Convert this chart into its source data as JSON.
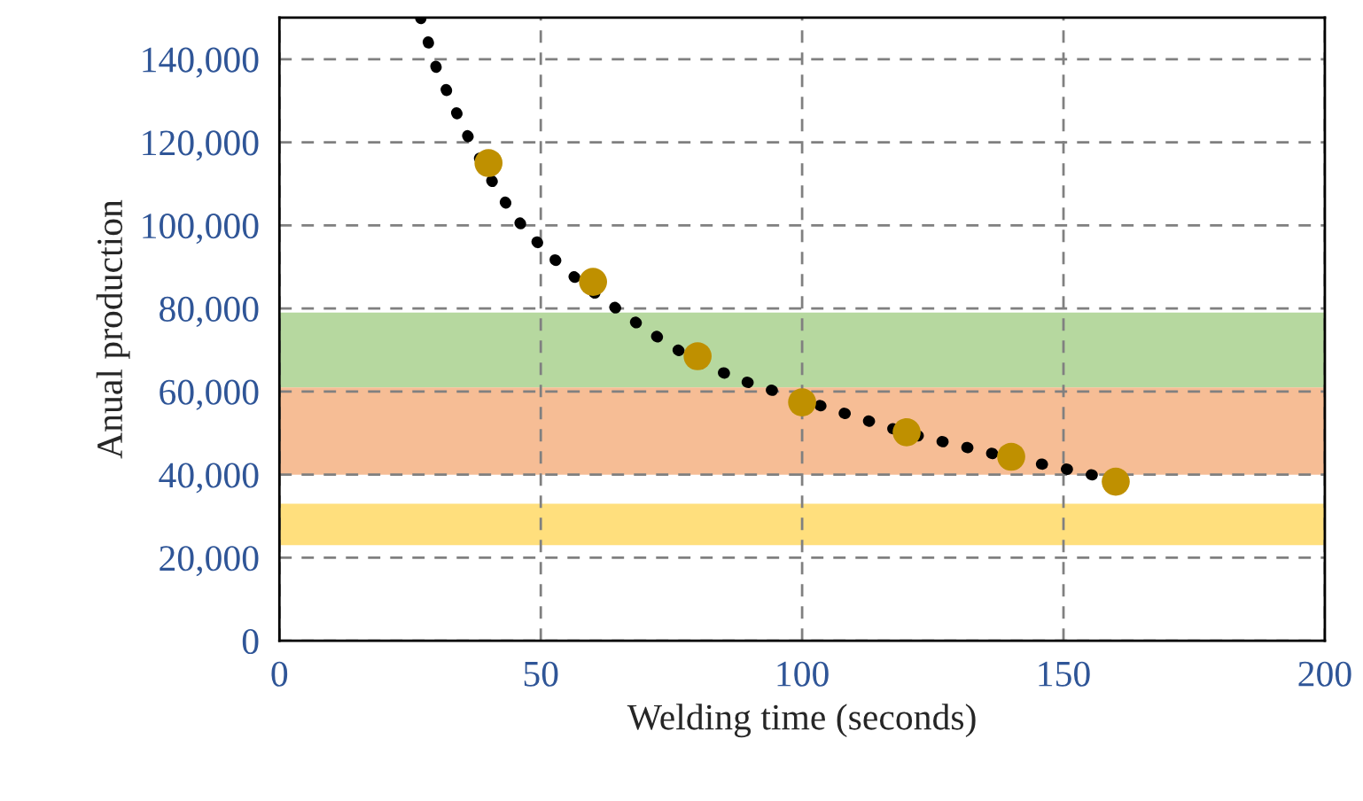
{
  "chart_data": {
    "type": "scatter",
    "xlabel": "Welding time (seconds)",
    "ylabel": "Anual production",
    "xlim": [
      0,
      200
    ],
    "xticks": [
      0,
      50,
      100,
      150,
      200
    ],
    "ylim": [
      0,
      150000
    ],
    "yticks": [
      {
        "value": 0,
        "label": "0"
      },
      {
        "value": 20000,
        "label": "20,000"
      },
      {
        "value": 40000,
        "label": "40,000"
      },
      {
        "value": 60000,
        "label": "60,000"
      },
      {
        "value": 80000,
        "label": "80,000"
      },
      {
        "value": 100000,
        "label": "100,000"
      },
      {
        "value": 120000,
        "label": "120,000"
      },
      {
        "value": 140000,
        "label": "140,000"
      }
    ],
    "grid": true,
    "marker": "circle",
    "series": [
      {
        "type": "line",
        "color": "#000000",
        "line_style": "dotted",
        "marker": "none",
        "x": [
          27,
          30,
          35,
          40,
          45,
          50,
          55,
          60,
          70,
          80,
          90,
          100,
          110,
          120,
          130,
          140,
          150,
          157
        ],
        "values": [
          150000,
          138000,
          124000,
          112000,
          102000,
          95000,
          89000,
          84000,
          75000,
          67000,
          62000,
          58000,
          54000,
          50000,
          47000,
          44000,
          41500,
          39500
        ]
      },
      {
        "color": "#bf9000",
        "x": [
          40,
          60,
          80,
          100,
          120,
          140,
          160
        ],
        "values": [
          115000,
          86400,
          68500,
          57400,
          50200,
          44300,
          38300
        ]
      }
    ],
    "bands": [
      {
        "axis": "y",
        "from": 61000,
        "to": 79000,
        "color": "#a9d18e"
      },
      {
        "axis": "y",
        "from": 40000,
        "to": 61000,
        "color": "#f4b183"
      },
      {
        "axis": "y",
        "from": 23000,
        "to": 33000,
        "color": "#ffd966"
      }
    ]
  }
}
